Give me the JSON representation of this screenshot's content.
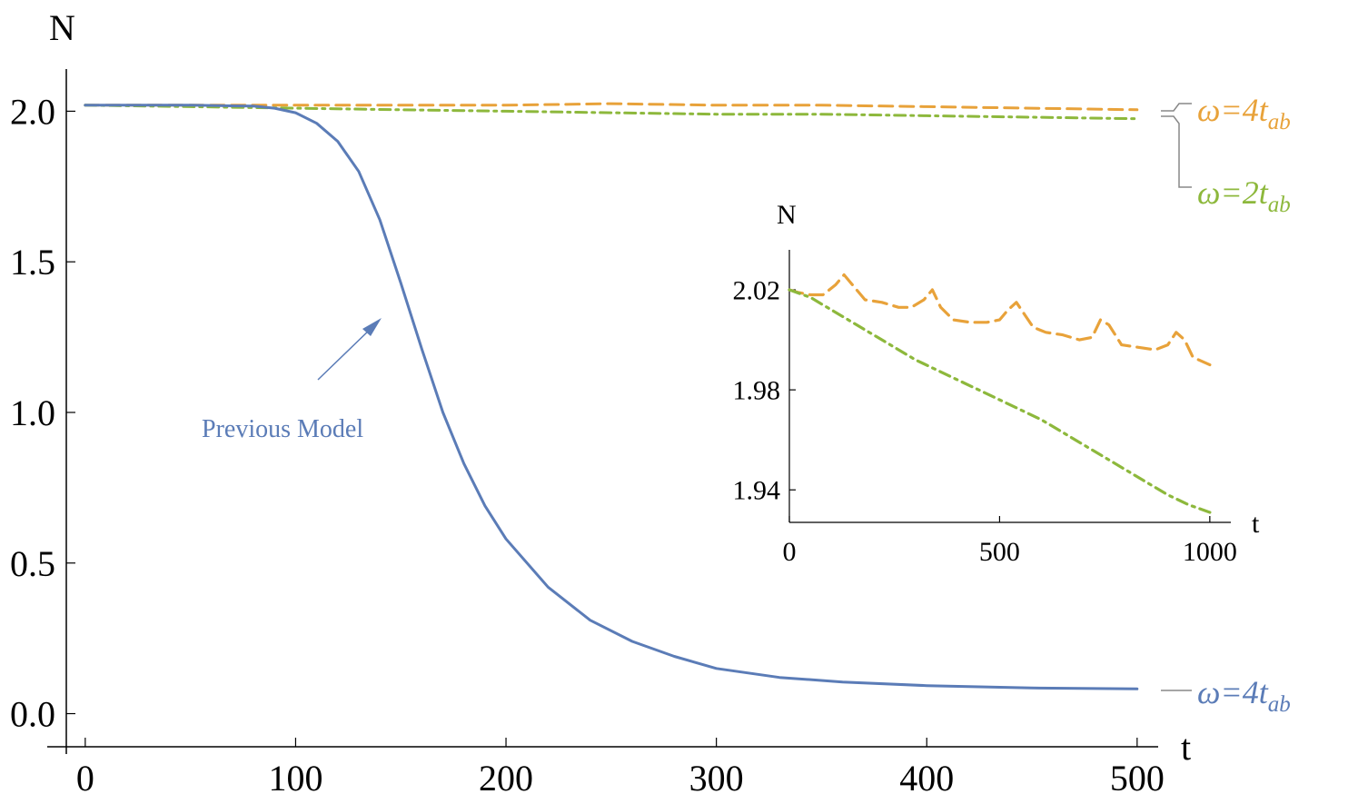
{
  "chart_data": [
    {
      "type": "line",
      "title": "",
      "xlabel": "t",
      "ylabel": "N",
      "xlim": [
        -9,
        510
      ],
      "ylim": [
        -0.11,
        2.14
      ],
      "xticks": [
        0,
        100,
        200,
        300,
        400,
        500
      ],
      "xtick_labels": [
        "0",
        "100",
        "200",
        "300",
        "400",
        "500"
      ],
      "yticks": [
        0.0,
        0.5,
        1.0,
        1.5,
        2.0
      ],
      "ytick_labels": [
        "0.0",
        "0.5",
        "1.0",
        "1.5",
        "2.0"
      ],
      "grid": false,
      "series": [
        {
          "key": "orange",
          "color": "#e8a23a",
          "style": "dashed",
          "x": [
            0,
            50,
            100,
            150,
            200,
            250,
            300,
            350,
            400,
            450,
            500
          ],
          "y": [
            2.02,
            2.02,
            2.02,
            2.02,
            2.02,
            2.025,
            2.02,
            2.02,
            2.015,
            2.01,
            2.005
          ]
        },
        {
          "key": "green",
          "color": "#8db83c",
          "style": "dashdot",
          "x": [
            0,
            50,
            100,
            150,
            200,
            250,
            300,
            350,
            400,
            450,
            500
          ],
          "y": [
            2.02,
            2.015,
            2.01,
            2.005,
            2.0,
            1.995,
            1.99,
            1.99,
            1.985,
            1.98,
            1.975
          ]
        },
        {
          "key": "blue",
          "color": "#5b7cb7",
          "style": "solid",
          "x": [
            0,
            50,
            80,
            90,
            100,
            110,
            120,
            130,
            140,
            150,
            160,
            170,
            180,
            190,
            200,
            220,
            240,
            260,
            280,
            300,
            330,
            360,
            400,
            450,
            500
          ],
          "y": [
            2.02,
            2.02,
            2.017,
            2.01,
            1.995,
            1.96,
            1.9,
            1.8,
            1.64,
            1.43,
            1.21,
            1.0,
            0.83,
            0.69,
            0.58,
            0.42,
            0.31,
            0.24,
            0.19,
            0.15,
            0.12,
            0.105,
            0.093,
            0.085,
            0.082
          ]
        }
      ],
      "legend": [
        {
          "text": "ω=4",
          "sub": "ab",
          "color": "#e8a23a"
        },
        {
          "text": "ω=2",
          "sub": "ab",
          "color": "#8db83c"
        },
        {
          "text": "ω=4",
          "sub": "ab",
          "color": "#5b7cb7"
        }
      ],
      "annotation": {
        "text": "Previous Model",
        "color": "#5b7cb7"
      }
    },
    {
      "type": "line",
      "title": "",
      "xlabel": "t",
      "ylabel": "N",
      "xlim": [
        0,
        1050
      ],
      "ylim": [
        1.927,
        2.036
      ],
      "xticks": [
        0,
        500,
        1000
      ],
      "xtick_labels": [
        "0",
        "500",
        "1000"
      ],
      "yticks": [
        1.94,
        1.98,
        2.02
      ],
      "ytick_labels": [
        "1.94",
        "1.98",
        "2.02"
      ],
      "grid": false,
      "series": [
        {
          "key": "orange",
          "color": "#e8a23a",
          "style": "dashed",
          "x": [
            0,
            20,
            50,
            80,
            110,
            130,
            150,
            180,
            220,
            260,
            290,
            320,
            340,
            360,
            390,
            430,
            470,
            500,
            520,
            540,
            560,
            580,
            610,
            650,
            690,
            720,
            740,
            760,
            790,
            830,
            870,
            900,
            920,
            940,
            960,
            1000
          ],
          "y": [
            2.02,
            2.019,
            2.018,
            2.018,
            2.022,
            2.026,
            2.022,
            2.016,
            2.015,
            2.013,
            2.013,
            2.016,
            2.02,
            2.013,
            2.008,
            2.007,
            2.007,
            2.008,
            2.012,
            2.015,
            2.01,
            2.005,
            2.003,
            2.002,
            2.0,
            2.001,
            2.008,
            2.006,
            1.998,
            1.997,
            1.996,
            1.998,
            2.003,
            2.0,
            1.993,
            1.99
          ]
        },
        {
          "key": "green",
          "color": "#8db83c",
          "style": "dashdot",
          "x": [
            0,
            50,
            100,
            150,
            200,
            250,
            300,
            350,
            400,
            450,
            500,
            550,
            600,
            650,
            700,
            750,
            800,
            850,
            900,
            950,
            1000
          ],
          "y": [
            2.02,
            2.017,
            2.012,
            2.007,
            2.002,
            1.997,
            1.992,
            1.988,
            1.984,
            1.98,
            1.976,
            1.972,
            1.968,
            1.963,
            1.958,
            1.953,
            1.948,
            1.943,
            1.938,
            1.934,
            1.931
          ]
        }
      ]
    }
  ]
}
